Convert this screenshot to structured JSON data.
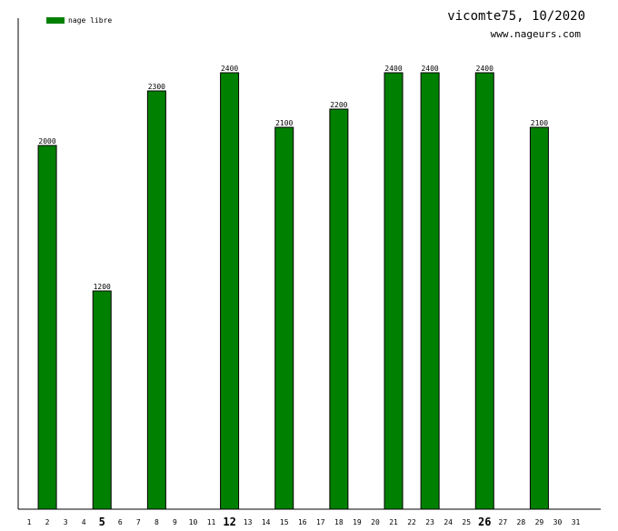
{
  "chart_data": {
    "type": "bar",
    "title": "vicomte75, 10/2020",
    "subtitle": "www.nageurs.com",
    "legend": {
      "placement": "top-left",
      "entries": [
        "nage libre"
      ]
    },
    "series": [
      {
        "name": "nage libre",
        "color": "#008000",
        "values": [
          null,
          2000,
          null,
          null,
          1200,
          null,
          null,
          2300,
          null,
          null,
          null,
          2400,
          null,
          null,
          2100,
          null,
          null,
          2200,
          null,
          null,
          2400,
          null,
          2400,
          null,
          null,
          2400,
          null,
          null,
          2100,
          null,
          null
        ]
      }
    ],
    "categories": [
      "1",
      "2",
      "3",
      "4",
      "5",
      "6",
      "7",
      "8",
      "9",
      "10",
      "11",
      "12",
      "13",
      "14",
      "15",
      "16",
      "17",
      "18",
      "19",
      "20",
      "21",
      "22",
      "23",
      "24",
      "25",
      "26",
      "27",
      "28",
      "29",
      "30",
      "31"
    ],
    "emphasized_categories": [
      "5",
      "12",
      "26"
    ],
    "ylim": [
      0,
      2400
    ],
    "grid": false,
    "xlabel": "",
    "ylabel": ""
  }
}
